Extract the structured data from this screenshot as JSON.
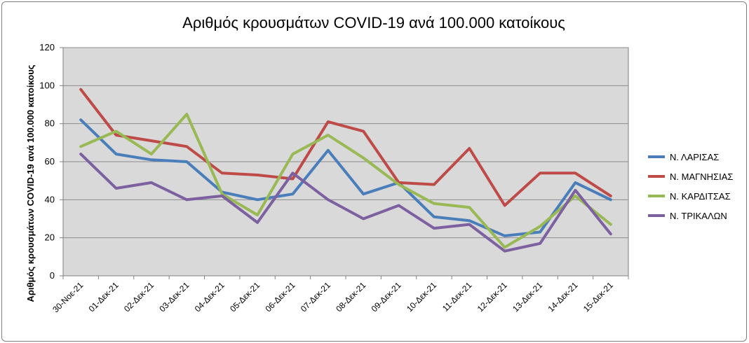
{
  "chart_data": {
    "type": "line",
    "title": "Αριθμός κρουσμάτων COVID-19 ανά 100.000 κατοίκους",
    "xlabel": "",
    "ylabel": "Αριθμός κρουσμάτων COVID-19 ανά 100.000 κατοίκους",
    "ylim": [
      0,
      120
    ],
    "yticks": [
      0,
      20,
      40,
      60,
      80,
      100,
      120
    ],
    "grid": true,
    "legend_position": "right",
    "plot_background": "#d9d9d9",
    "categories": [
      "30-Νοε-21",
      "01-Δεκ-21",
      "02-Δεκ-21",
      "03-Δεκ-21",
      "04-Δεκ-21",
      "05-Δεκ-21",
      "06-Δεκ-21",
      "07-Δεκ-21",
      "08-Δεκ-21",
      "09-Δεκ-21",
      "10-Δεκ-21",
      "11-Δεκ-21",
      "12-Δεκ-21",
      "13-Δεκ-21",
      "14-Δεκ-21",
      "15-Δεκ-21"
    ],
    "series": [
      {
        "name": "Ν. ΛΑΡΙΣΑΣ",
        "color": "#4a7ebb",
        "values": [
          82,
          64,
          61,
          60,
          44,
          40,
          43,
          66,
          43,
          49,
          31,
          29,
          21,
          23,
          49,
          40
        ]
      },
      {
        "name": "Ν. ΜΑΓΝΗΣΙΑΣ",
        "color": "#be4b48",
        "values": [
          98,
          74,
          71,
          68,
          54,
          53,
          51,
          81,
          76,
          49,
          48,
          67,
          37,
          54,
          54,
          42
        ]
      },
      {
        "name": "Ν. ΚΑΡΔΙΤΣΑΣ",
        "color": "#98b954",
        "values": [
          68,
          76,
          64,
          85,
          43,
          32,
          64,
          74,
          62,
          48,
          38,
          36,
          15,
          26,
          42,
          27
        ]
      },
      {
        "name": "Ν. ΤΡΙΚΑΛΩΝ",
        "color": "#7d60a0",
        "values": [
          64,
          46,
          49,
          40,
          42,
          28,
          54,
          40,
          30,
          37,
          25,
          27,
          13,
          17,
          45,
          22
        ]
      }
    ]
  }
}
